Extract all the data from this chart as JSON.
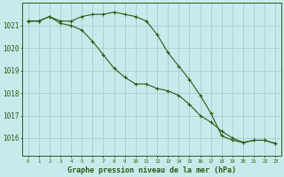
{
  "line1": [
    1021.2,
    1021.2,
    1021.4,
    1021.2,
    1021.2,
    1021.4,
    1021.5,
    1021.5,
    1021.6,
    1021.5,
    1021.4,
    1021.2,
    1020.6,
    1019.8,
    1019.2,
    1018.6,
    1017.9,
    1017.1,
    1016.1,
    1015.9,
    1015.8,
    1015.9,
    1015.9,
    1015.75
  ],
  "line2": [
    1021.2,
    1021.2,
    1021.4,
    1021.1,
    1021.0,
    1020.8,
    1020.3,
    1019.7,
    1019.1,
    1018.7,
    1018.4,
    1018.4,
    1018.2,
    1018.1,
    1017.9,
    1017.5,
    1017.0,
    1016.7,
    1016.3,
    1016.0,
    1015.8,
    1015.9,
    1015.9,
    1015.75
  ],
  "hours": [
    0,
    1,
    2,
    3,
    4,
    5,
    6,
    7,
    8,
    9,
    10,
    11,
    12,
    13,
    14,
    15,
    16,
    17,
    18,
    19,
    20,
    21,
    22,
    23
  ],
  "line_color": "#2d5a1b",
  "bg_color": "#c8eaea",
  "grid_color": "#a8cece",
  "ylabel_ticks": [
    1016,
    1017,
    1018,
    1019,
    1020,
    1021
  ],
  "ylim": [
    1015.2,
    1022.0
  ],
  "xlim": [
    -0.5,
    23.5
  ],
  "xlabel": "Graphe pression niveau de la mer (hPa)"
}
